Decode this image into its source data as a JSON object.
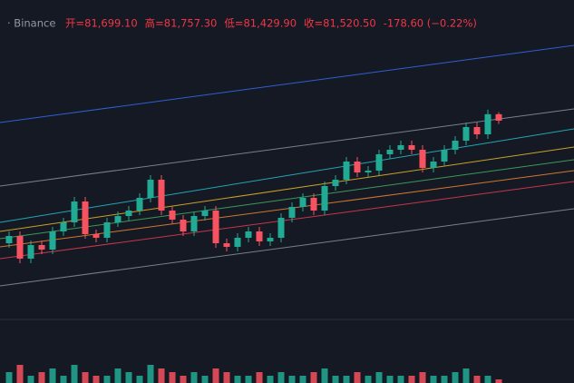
{
  "chart_data": {
    "type": "candlestick",
    "source": "· Binance",
    "ohlc_texts": [
      "开=81,699.10",
      "高=81,757.30",
      "低=81,429.90",
      "收=81,520.50",
      "-178.60 (−0.22%)"
    ],
    "up_color": "#22ab94",
    "down_color": "#f7525f",
    "ylim": [
      76095,
      84845
    ],
    "open": [
      78145,
      78345,
      77720,
      78095,
      77970,
      78470,
      78720,
      79295,
      78395,
      78295,
      78720,
      78895,
      79045,
      79395,
      79895,
      79045,
      78795,
      78470,
      78895,
      79045,
      78145,
      78045,
      78295,
      78470,
      78195,
      78295,
      78845,
      79145,
      79395,
      79045,
      79720,
      79895,
      80395,
      80095,
      80145,
      80595,
      80720,
      80845,
      80720,
      80220,
      80395,
      80720,
      80970,
      81345,
      81145,
      81699.1
    ],
    "close": [
      78345,
      77720,
      78095,
      77970,
      78470,
      78720,
      79295,
      78395,
      78295,
      78720,
      78895,
      79045,
      79395,
      79895,
      79045,
      78795,
      78470,
      78895,
      79045,
      78145,
      78045,
      78295,
      78470,
      78195,
      78295,
      78845,
      79145,
      79395,
      79045,
      79720,
      79895,
      80395,
      80095,
      80145,
      80595,
      80720,
      80845,
      80720,
      80220,
      80395,
      80720,
      80970,
      81345,
      81145,
      81699.1,
      81520.5
    ],
    "high": [
      78470,
      78470,
      78220,
      78220,
      78595,
      78845,
      79420,
      79420,
      78520,
      78845,
      79020,
      79170,
      79520,
      80020,
      80020,
      79170,
      78920,
      79020,
      79170,
      79170,
      78270,
      78420,
      78595,
      78595,
      78420,
      78970,
      79270,
      79520,
      79520,
      79845,
      80020,
      80520,
      80520,
      80270,
      80720,
      80845,
      80970,
      80970,
      80845,
      80520,
      80845,
      81095,
      81470,
      81470,
      81824,
      81757.3
    ],
    "low": [
      78020,
      77595,
      77595,
      77845,
      77845,
      78345,
      78595,
      78270,
      78170,
      78170,
      78595,
      78770,
      78920,
      79270,
      78920,
      78670,
      78345,
      78345,
      78770,
      78020,
      77920,
      77920,
      78170,
      78070,
      78070,
      78170,
      78720,
      79020,
      78920,
      78920,
      79595,
      79770,
      79970,
      79970,
      80020,
      80470,
      80595,
      80595,
      80095,
      80095,
      80270,
      80595,
      80845,
      81020,
      81020,
      81429.9
    ],
    "volume": [
      3,
      5,
      2,
      3,
      4,
      2,
      5,
      3,
      2,
      2,
      4,
      3,
      2,
      5,
      4,
      3,
      2,
      3,
      2,
      4,
      3,
      2,
      2,
      3,
      2,
      3,
      2,
      2,
      3,
      4,
      2,
      2,
      3,
      2,
      3,
      2,
      2,
      2,
      3,
      2,
      2,
      3,
      4,
      2,
      2,
      1
    ],
    "volume_lim": [
      0,
      10
    ]
  }
}
